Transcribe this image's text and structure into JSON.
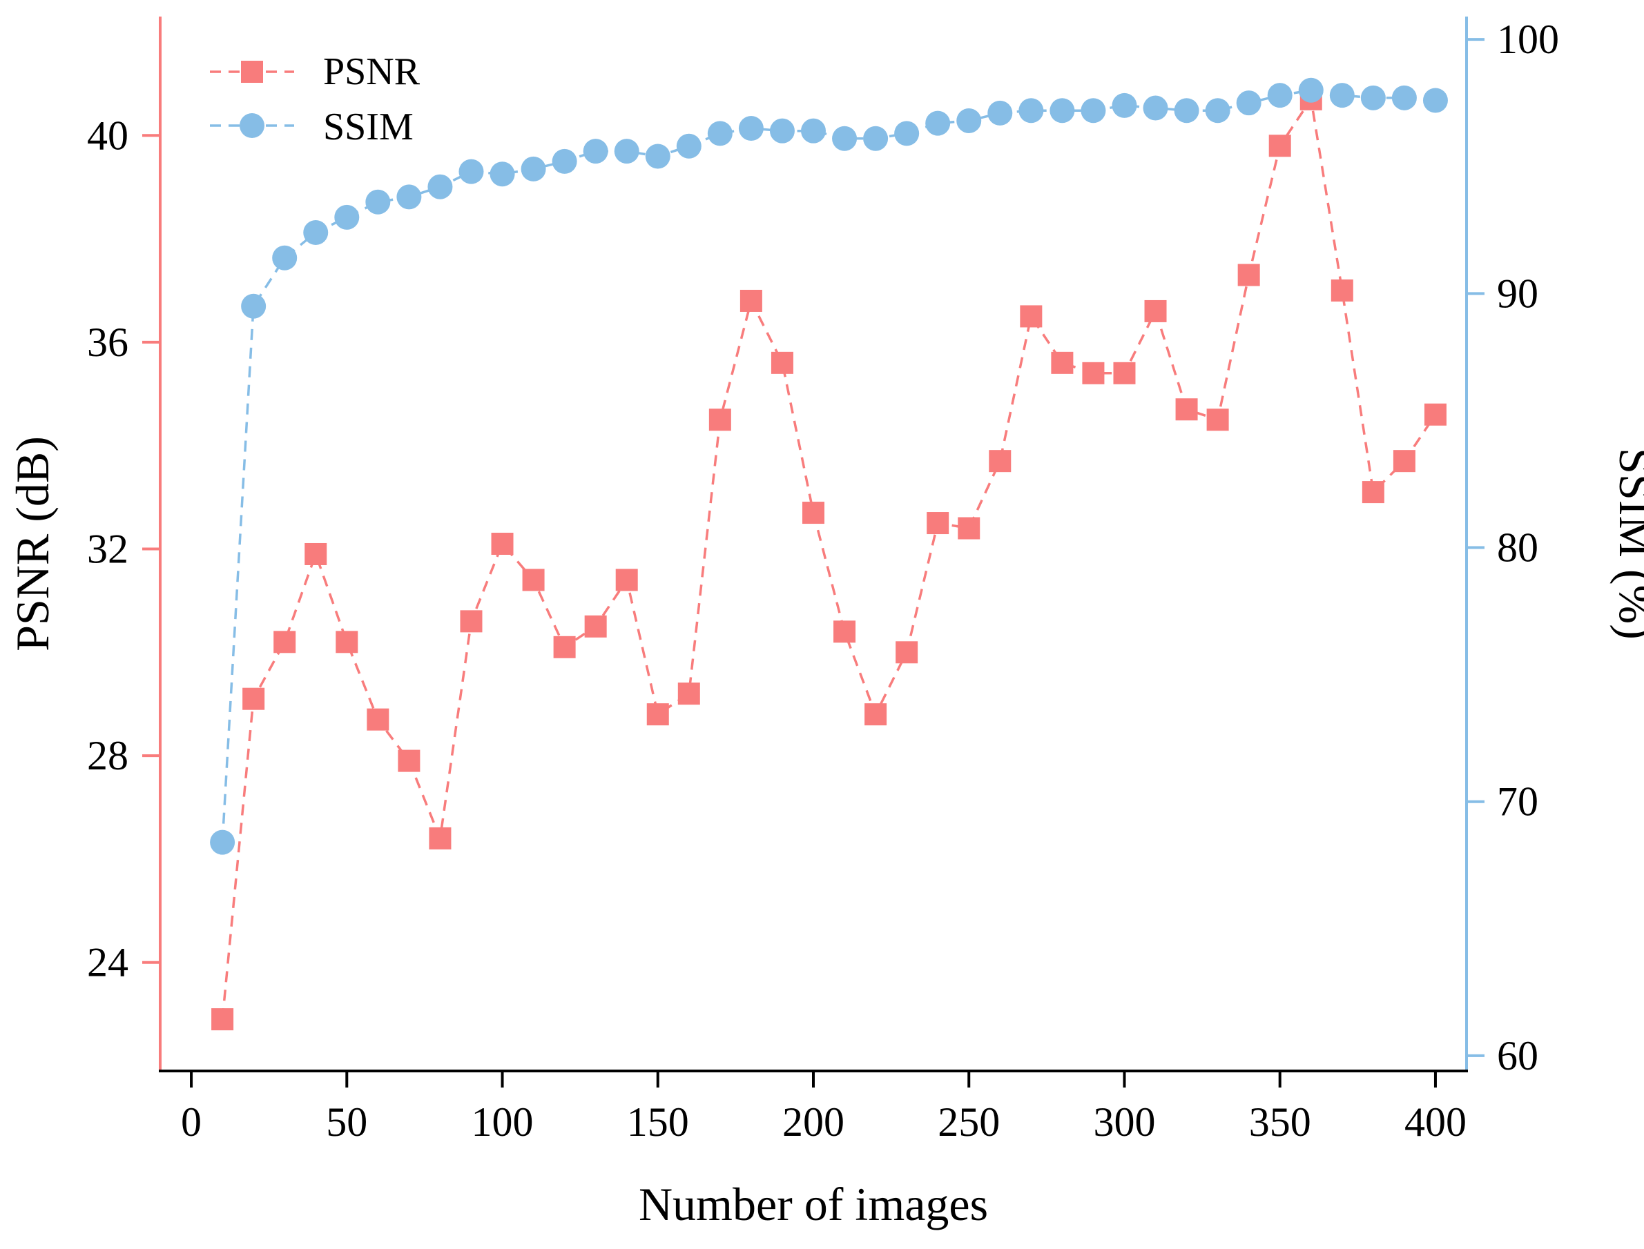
{
  "colors": {
    "psnr": "#f87c7c",
    "ssim": "#86bde6",
    "axis": "#000000"
  },
  "chart_data": {
    "type": "line",
    "title": "",
    "xlabel": "Number of images",
    "ylabel_left": "PSNR (dB)",
    "ylabel_right": "SSIM (%)",
    "xlim": [
      -10,
      410
    ],
    "ylim_left": [
      21.9,
      42.3
    ],
    "ylim_right": [
      59.4,
      100.9
    ],
    "x_ticks": [
      0,
      50,
      100,
      150,
      200,
      250,
      300,
      350,
      400
    ],
    "x_tick_labels": [
      "0",
      "50",
      "100",
      "150",
      "200",
      "250",
      "300",
      "350",
      "400"
    ],
    "y_left_ticks": [
      24,
      28,
      32,
      36,
      40
    ],
    "y_left_tick_labels": [
      "24",
      "28",
      "32",
      "36",
      "40"
    ],
    "y_right_ticks": [
      60,
      70,
      80,
      90,
      100
    ],
    "y_right_tick_labels": [
      "60",
      "70",
      "80",
      "90",
      "100"
    ],
    "legend_position": "top-left",
    "x": [
      10,
      20,
      30,
      40,
      50,
      60,
      70,
      80,
      90,
      100,
      110,
      120,
      130,
      140,
      150,
      160,
      170,
      180,
      190,
      200,
      210,
      220,
      230,
      240,
      250,
      260,
      270,
      280,
      290,
      300,
      310,
      320,
      330,
      340,
      350,
      360,
      370,
      380,
      390,
      400
    ],
    "series": [
      {
        "name": "PSNR",
        "axis": "left",
        "marker": "square",
        "values": [
          22.9,
          29.1,
          30.2,
          31.9,
          30.2,
          28.7,
          27.9,
          26.4,
          30.6,
          32.1,
          31.4,
          30.1,
          30.5,
          31.4,
          28.8,
          29.2,
          34.5,
          36.8,
          35.6,
          32.7,
          30.4,
          28.8,
          30.0,
          32.5,
          32.4,
          33.7,
          36.5,
          35.6,
          35.4,
          35.4,
          36.6,
          34.7,
          34.5,
          37.3,
          39.8,
          40.7,
          37.0,
          33.1,
          33.7,
          34.6
        ]
      },
      {
        "name": "SSIM",
        "axis": "right",
        "marker": "circle",
        "values": [
          68.4,
          89.5,
          91.4,
          92.4,
          93.0,
          93.6,
          93.8,
          94.2,
          94.8,
          94.7,
          94.9,
          95.2,
          95.6,
          95.6,
          95.4,
          95.8,
          96.3,
          96.5,
          96.4,
          96.4,
          96.1,
          96.1,
          96.3,
          96.7,
          96.8,
          97.1,
          97.2,
          97.2,
          97.2,
          97.4,
          97.3,
          97.2,
          97.2,
          97.5,
          97.8,
          98.0,
          97.8,
          97.7,
          97.7,
          97.6
        ]
      }
    ]
  }
}
